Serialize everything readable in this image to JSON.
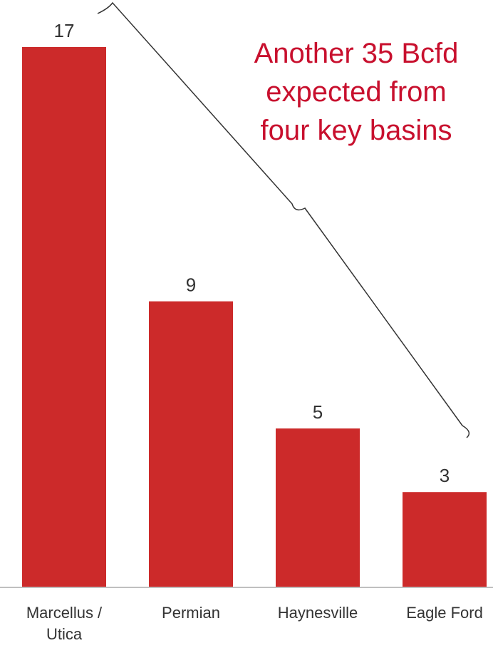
{
  "chart_data": {
    "type": "bar",
    "categories": [
      [
        "Marcellus /",
        "Utica"
      ],
      [
        "Permian"
      ],
      [
        "Haynesville"
      ],
      [
        "Eagle Ford"
      ]
    ],
    "values": [
      17,
      9,
      5,
      3
    ],
    "value_labels": [
      "17",
      "9",
      "5",
      "3"
    ],
    "title": "",
    "xlabel": "",
    "ylabel": "",
    "ylim": [
      0,
      17
    ],
    "grid": false,
    "legend": "none",
    "annotation": {
      "lines": [
        "Another 35 Bcfd",
        "expected from",
        "four key basins"
      ],
      "color": "#c8102e"
    },
    "colors": {
      "bar": "#cc2a2a",
      "axis": "#bfbfbf",
      "text": "#333333",
      "bracket": "#333333"
    }
  }
}
